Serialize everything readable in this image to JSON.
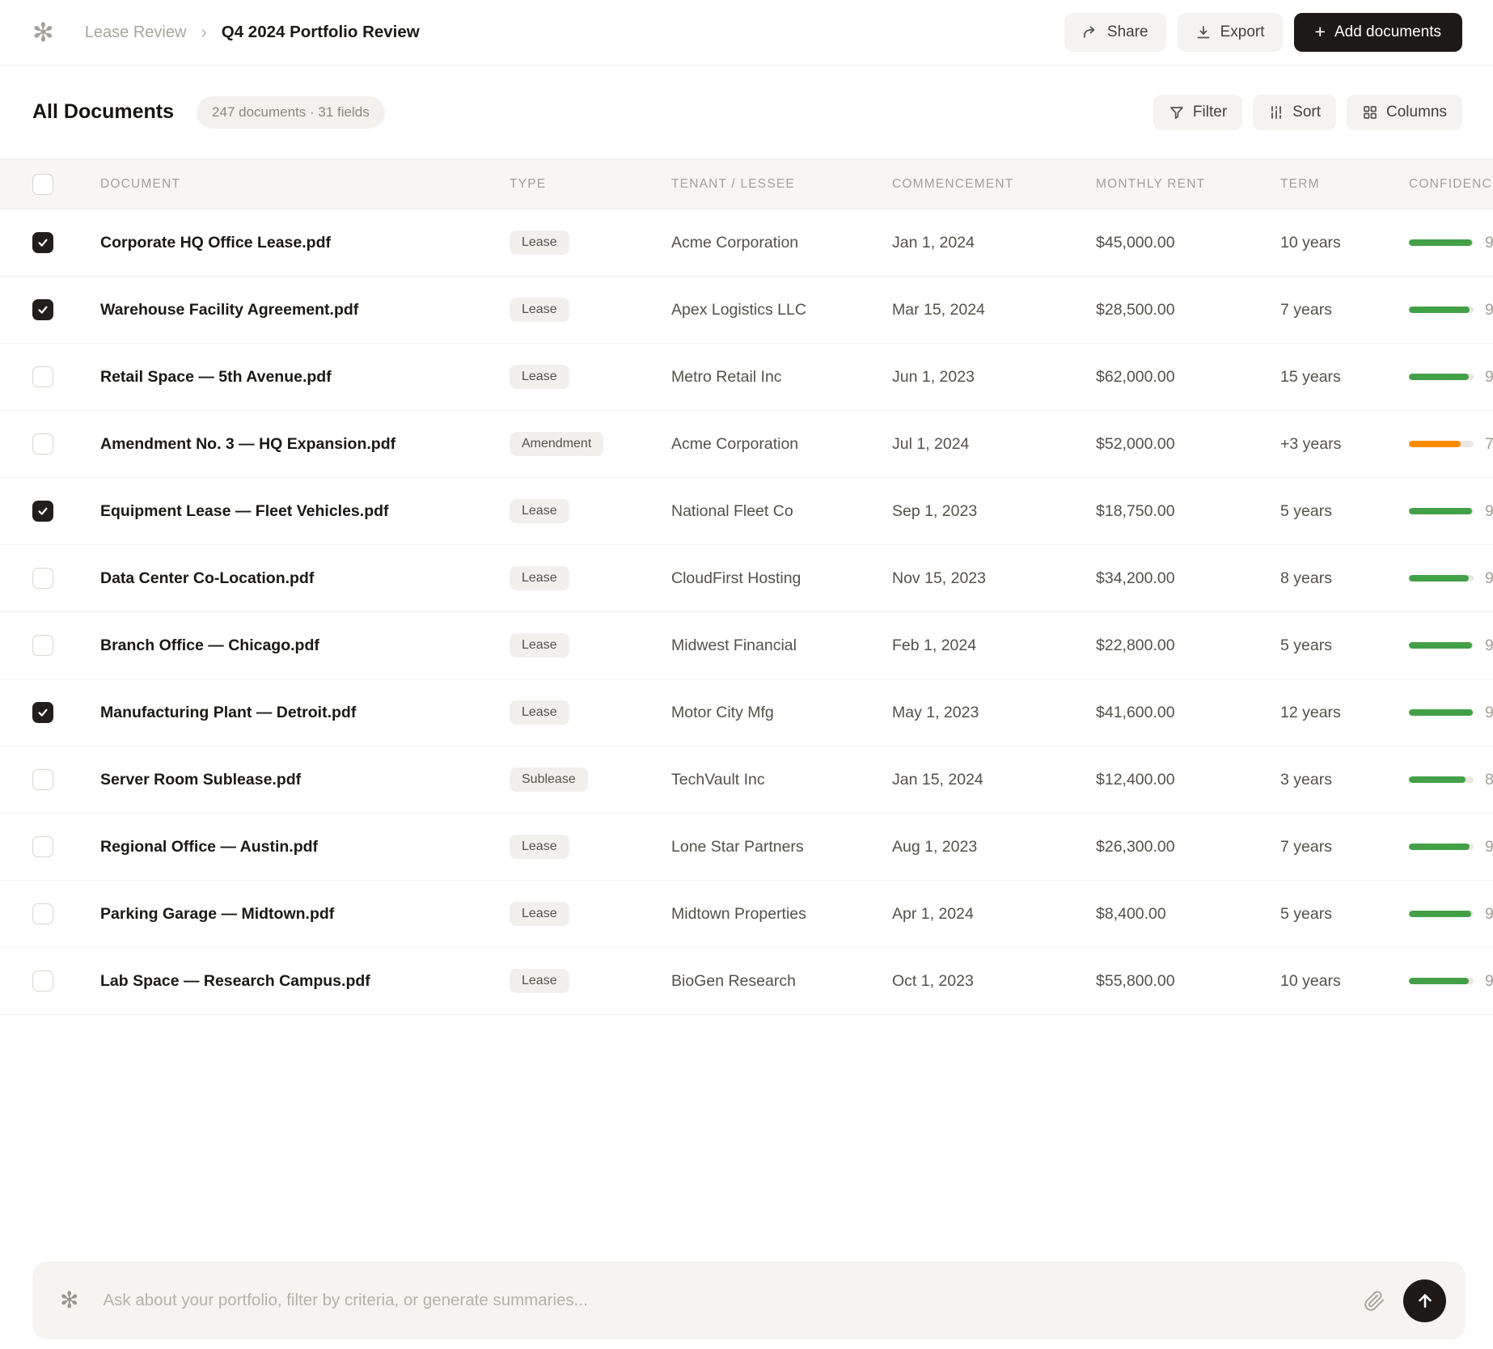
{
  "header": {
    "logo_glyph": "✻",
    "breadcrumb": {
      "parent": "Lease Review",
      "separator": "›",
      "current": "Q4 2024 Portfolio Review"
    },
    "buttons": {
      "share": "Share",
      "export": "Export",
      "add_documents": "Add documents",
      "plus_glyph": "+"
    }
  },
  "toolbar": {
    "title": "All Documents",
    "summary_badge": "247 documents · 31 fields",
    "buttons": {
      "filter": "Filter",
      "sort": "Sort",
      "columns": "Columns"
    }
  },
  "table": {
    "columns": [
      "DOCUMENT",
      "TYPE",
      "TENANT / LESSEE",
      "COMMENCEMENT",
      "MONTHLY RENT",
      "TERM",
      "CONFIDENCE"
    ],
    "rows": [
      {
        "checked": true,
        "document": "Corporate HQ Office Lease.pdf",
        "type": "Lease",
        "tenant": "Acme Corporation",
        "commencement": "Jan 1, 2024",
        "monthly_rent": "$45,000.00",
        "term": "10 years",
        "confidence": {
          "percent": 97,
          "color": "green",
          "value_visible": "9"
        }
      },
      {
        "checked": true,
        "document": "Warehouse Facility Agreement.pdf",
        "type": "Lease",
        "tenant": "Apex Logistics LLC",
        "commencement": "Mar 15, 2024",
        "monthly_rent": "$28,500.00",
        "term": "7 years",
        "confidence": {
          "percent": 94,
          "color": "green",
          "value_visible": "9"
        }
      },
      {
        "checked": false,
        "document": "Retail Space — 5th Avenue.pdf",
        "type": "Lease",
        "tenant": "Metro Retail Inc",
        "commencement": "Jun 1, 2023",
        "monthly_rent": "$62,000.00",
        "term": "15 years",
        "confidence": {
          "percent": 93,
          "color": "green",
          "value_visible": "9"
        }
      },
      {
        "checked": false,
        "document": "Amendment No. 3 — HQ Expansion.pdf",
        "type": "Amendment",
        "tenant": "Acme Corporation",
        "commencement": "Jul 1, 2024",
        "monthly_rent": "$52,000.00",
        "term": "+3 years",
        "confidence": {
          "percent": 80,
          "color": "orange",
          "value_visible": "7"
        }
      },
      {
        "checked": true,
        "document": "Equipment Lease — Fleet Vehicles.pdf",
        "type": "Lease",
        "tenant": "National Fleet Co",
        "commencement": "Sep 1, 2023",
        "monthly_rent": "$18,750.00",
        "term": "5 years",
        "confidence": {
          "percent": 97,
          "color": "green",
          "value_visible": "9"
        }
      },
      {
        "checked": false,
        "document": "Data Center Co-Location.pdf",
        "type": "Lease",
        "tenant": "CloudFirst Hosting",
        "commencement": "Nov 15, 2023",
        "monthly_rent": "$34,200.00",
        "term": "8 years",
        "confidence": {
          "percent": 92,
          "color": "green",
          "value_visible": "9"
        }
      },
      {
        "checked": false,
        "document": "Branch Office — Chicago.pdf",
        "type": "Lease",
        "tenant": "Midwest Financial",
        "commencement": "Feb 1, 2024",
        "monthly_rent": "$22,800.00",
        "term": "5 years",
        "confidence": {
          "percent": 97,
          "color": "green",
          "value_visible": "9"
        }
      },
      {
        "checked": true,
        "document": "Manufacturing Plant — Detroit.pdf",
        "type": "Lease",
        "tenant": "Motor City Mfg",
        "commencement": "May 1, 2023",
        "monthly_rent": "$41,600.00",
        "term": "12 years",
        "confidence": {
          "percent": 99,
          "color": "green",
          "value_visible": "9"
        }
      },
      {
        "checked": false,
        "document": "Server Room Sublease.pdf",
        "type": "Sublease",
        "tenant": "TechVault Inc",
        "commencement": "Jan 15, 2024",
        "monthly_rent": "$12,400.00",
        "term": "3 years",
        "confidence": {
          "percent": 88,
          "color": "green",
          "value_visible": "8"
        }
      },
      {
        "checked": false,
        "document": "Regional Office — Austin.pdf",
        "type": "Lease",
        "tenant": "Lone Star Partners",
        "commencement": "Aug 1, 2023",
        "monthly_rent": "$26,300.00",
        "term": "7 years",
        "confidence": {
          "percent": 94,
          "color": "green",
          "value_visible": "9"
        }
      },
      {
        "checked": false,
        "document": "Parking Garage — Midtown.pdf",
        "type": "Lease",
        "tenant": "Midtown Properties",
        "commencement": "Apr 1, 2024",
        "monthly_rent": "$8,400.00",
        "term": "5 years",
        "confidence": {
          "percent": 96,
          "color": "green",
          "value_visible": "9"
        }
      },
      {
        "checked": false,
        "document": "Lab Space — Research Campus.pdf",
        "type": "Lease",
        "tenant": "BioGen Research",
        "commencement": "Oct 1, 2023",
        "monthly_rent": "$55,800.00",
        "term": "10 years",
        "confidence": {
          "percent": 93,
          "color": "green",
          "value_visible": "9"
        }
      }
    ]
  },
  "chat": {
    "placeholder": "Ask about your portfolio, filter by criteria, or generate summaries...",
    "sparkle_glyph": "✻"
  },
  "colors": {
    "green": "#43a047",
    "orange": "#fb8c00",
    "accent_dark": "#1c1917"
  }
}
